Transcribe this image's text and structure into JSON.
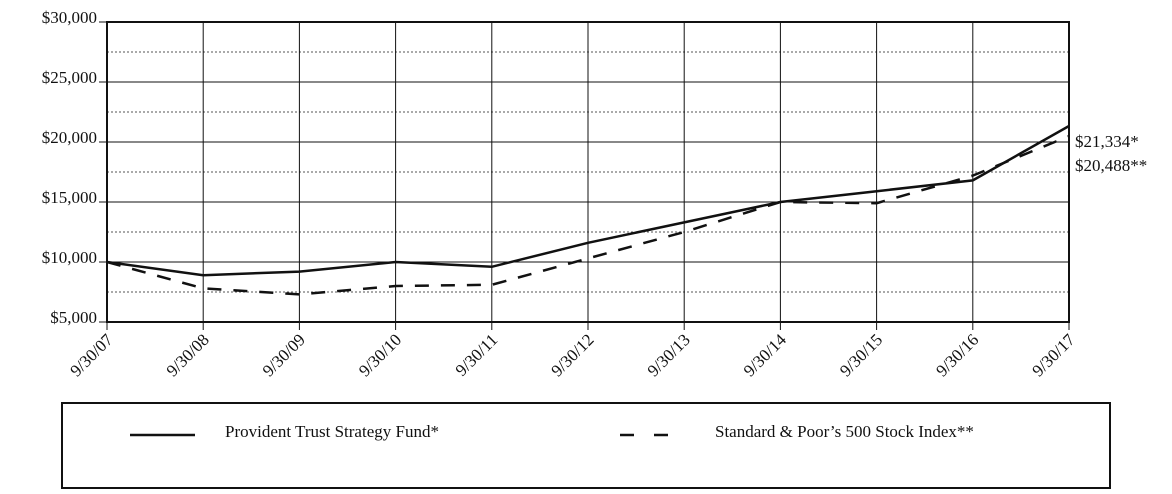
{
  "chart_data": {
    "type": "line",
    "categories": [
      "9/30/07",
      "9/30/08",
      "9/30/09",
      "9/30/10",
      "9/30/11",
      "9/30/12",
      "9/30/13",
      "9/30/14",
      "9/30/15",
      "9/30/16",
      "9/30/17"
    ],
    "series": [
      {
        "name": "Provident Trust Strategy Fund*",
        "color": "#111111",
        "dash": "solid",
        "values": [
          10000,
          8900,
          9200,
          10000,
          9600,
          11600,
          13300,
          15000,
          15900,
          16800,
          21334
        ],
        "value_labels": [
          null,
          null,
          null,
          null,
          null,
          null,
          null,
          null,
          null,
          null,
          "$21,334*"
        ]
      },
      {
        "name": "Standard & Poor’s 500 Stock Index**",
        "color": "#111111",
        "dash": "dashed",
        "values": [
          10000,
          7800,
          7300,
          8000,
          8100,
          10300,
          12500,
          15000,
          14900,
          17200,
          20488
        ],
        "value_labels": [
          null,
          null,
          null,
          null,
          null,
          null,
          null,
          null,
          null,
          null,
          "$20,488**"
        ]
      }
    ],
    "ylim": [
      5000,
      30000
    ],
    "yticks": [
      {
        "value": 5000,
        "label": "$5,000"
      },
      {
        "value": 10000,
        "label": "$10,000"
      },
      {
        "value": 15000,
        "label": "$15,000"
      },
      {
        "value": 20000,
        "label": "$20,000"
      },
      {
        "value": 25000,
        "label": "$25,000"
      },
      {
        "value": 30000,
        "label": "$30,000"
      }
    ],
    "minor_yticks": [
      7500,
      12500,
      17500,
      22500,
      27500
    ],
    "grid": true,
    "legend": "bottom"
  }
}
